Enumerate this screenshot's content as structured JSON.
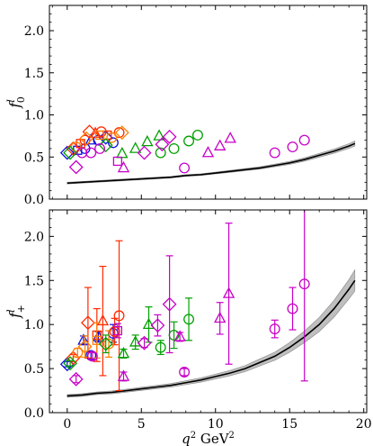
{
  "chart_data": [
    {
      "type": "scatter",
      "panel": "top",
      "ylabel": "f_0^l",
      "xlabel": "",
      "xlim": [
        -1.2,
        20.2
      ],
      "ylim": [
        0.0,
        2.3
      ],
      "x_ticks": [],
      "y_ticks": [
        0.0,
        0.5,
        1.0,
        1.5,
        2.0
      ],
      "y_tick_labels": [
        "0.0",
        "0.5",
        "1.0",
        "1.5",
        "2.0"
      ],
      "band": {
        "color": "#000000",
        "fill": "#aaaaaa",
        "x": [
          0,
          1,
          2,
          3,
          4,
          5,
          6,
          7,
          8,
          9,
          10,
          11,
          12,
          13,
          14,
          15,
          16,
          17,
          18,
          19,
          19.4
        ],
        "central": [
          0.19,
          0.2,
          0.21,
          0.22,
          0.23,
          0.24,
          0.25,
          0.26,
          0.28,
          0.29,
          0.31,
          0.33,
          0.35,
          0.37,
          0.4,
          0.43,
          0.47,
          0.52,
          0.57,
          0.63,
          0.66
        ],
        "half_width": [
          0.01,
          0.01,
          0.01,
          0.01,
          0.01,
          0.01,
          0.01,
          0.01,
          0.01,
          0.01,
          0.01,
          0.012,
          0.013,
          0.014,
          0.016,
          0.018,
          0.02,
          0.022,
          0.025,
          0.028,
          0.03
        ]
      },
      "series": [
        {
          "color": "#1010e0",
          "points": [
            {
              "x": 0.0,
              "y": 0.55,
              "marker": "diamond"
            },
            {
              "x": 0.7,
              "y": 0.58,
              "marker": "square"
            },
            {
              "x": 1.2,
              "y": 0.6,
              "marker": "circle"
            },
            {
              "x": 1.6,
              "y": 0.7,
              "marker": "triangle"
            },
            {
              "x": 2.1,
              "y": 0.7,
              "marker": "circle"
            },
            {
              "x": 2.6,
              "y": 0.73,
              "marker": "diamond"
            },
            {
              "x": 3.1,
              "y": 0.67,
              "marker": "circle"
            }
          ]
        },
        {
          "color": "#ff2a00",
          "points": [
            {
              "x": 0.4,
              "y": 0.6,
              "marker": "diamond"
            },
            {
              "x": 0.9,
              "y": 0.66,
              "marker": "square"
            },
            {
              "x": 1.2,
              "y": 0.7,
              "marker": "circle"
            },
            {
              "x": 1.5,
              "y": 0.8,
              "marker": "diamond"
            },
            {
              "x": 1.9,
              "y": 0.78,
              "marker": "triangle"
            },
            {
              "x": 2.3,
              "y": 0.8,
              "marker": "circle"
            },
            {
              "x": 2.7,
              "y": 0.76,
              "marker": "square"
            },
            {
              "x": 3.5,
              "y": 0.79,
              "marker": "circle"
            }
          ]
        },
        {
          "color": "#ff7f00",
          "points": [
            {
              "x": 0.6,
              "y": 0.62,
              "marker": "circle"
            },
            {
              "x": 1.3,
              "y": 0.72,
              "marker": "diamond"
            },
            {
              "x": 2.2,
              "y": 0.76,
              "marker": "square"
            },
            {
              "x": 3.0,
              "y": 0.73,
              "marker": "circle"
            },
            {
              "x": 3.7,
              "y": 0.79,
              "marker": "diamond"
            }
          ]
        },
        {
          "color": "#00a000",
          "points": [
            {
              "x": 0.2,
              "y": 0.55,
              "marker": "diamond"
            },
            {
              "x": 2.6,
              "y": 0.64,
              "marker": "diamond"
            },
            {
              "x": 3.7,
              "y": 0.54,
              "marker": "triangle"
            },
            {
              "x": 4.6,
              "y": 0.6,
              "marker": "triangle"
            },
            {
              "x": 5.4,
              "y": 0.68,
              "marker": "triangle"
            },
            {
              "x": 6.2,
              "y": 0.75,
              "marker": "triangle"
            },
            {
              "x": 6.3,
              "y": 0.55,
              "marker": "circle"
            },
            {
              "x": 7.2,
              "y": 0.6,
              "marker": "circle"
            },
            {
              "x": 8.2,
              "y": 0.69,
              "marker": "circle"
            },
            {
              "x": 8.8,
              "y": 0.76,
              "marker": "circle"
            }
          ]
        },
        {
          "color": "#c800c8",
          "points": [
            {
              "x": 0.6,
              "y": 0.38,
              "marker": "diamond"
            },
            {
              "x": 1.0,
              "y": 0.55,
              "marker": "circle"
            },
            {
              "x": 1.6,
              "y": 0.55,
              "marker": "circle"
            },
            {
              "x": 2.2,
              "y": 0.6,
              "marker": "circle"
            },
            {
              "x": 3.4,
              "y": 0.45,
              "marker": "square"
            },
            {
              "x": 3.8,
              "y": 0.37,
              "marker": "triangle"
            },
            {
              "x": 5.2,
              "y": 0.55,
              "marker": "diamond"
            },
            {
              "x": 6.4,
              "y": 0.65,
              "marker": "diamond"
            },
            {
              "x": 6.9,
              "y": 0.74,
              "marker": "diamond"
            },
            {
              "x": 7.9,
              "y": 0.37,
              "marker": "circle"
            },
            {
              "x": 9.5,
              "y": 0.55,
              "marker": "triangle"
            },
            {
              "x": 10.3,
              "y": 0.63,
              "marker": "triangle"
            },
            {
              "x": 11.0,
              "y": 0.72,
              "marker": "triangle"
            },
            {
              "x": 14.0,
              "y": 0.55,
              "marker": "circle"
            },
            {
              "x": 15.2,
              "y": 0.62,
              "marker": "circle"
            },
            {
              "x": 16.0,
              "y": 0.7,
              "marker": "circle"
            }
          ]
        }
      ]
    },
    {
      "type": "scatter",
      "panel": "bottom",
      "ylabel": "f_+^l",
      "xlabel": "q^2 GeV^2",
      "xlim": [
        -1.2,
        20.2
      ],
      "ylim": [
        0.0,
        2.3
      ],
      "x_ticks": [
        0,
        5,
        10,
        15,
        20
      ],
      "x_tick_labels": [
        "0",
        "5",
        "10",
        "15",
        "20"
      ],
      "y_ticks": [
        0.0,
        0.5,
        1.0,
        1.5,
        2.0
      ],
      "y_tick_labels": [
        "0.0",
        "0.5",
        "1.0",
        "1.5",
        "2.0"
      ],
      "band": {
        "color": "#000000",
        "fill": "#aaaaaa",
        "x": [
          0,
          1,
          2,
          3,
          4,
          5,
          6,
          7,
          8,
          9,
          10,
          11,
          12,
          13,
          14,
          15,
          16,
          17,
          18,
          19,
          19.4
        ],
        "central": [
          0.19,
          0.2,
          0.22,
          0.23,
          0.25,
          0.27,
          0.29,
          0.31,
          0.34,
          0.37,
          0.41,
          0.45,
          0.5,
          0.57,
          0.64,
          0.74,
          0.86,
          1.0,
          1.18,
          1.4,
          1.5
        ],
        "half_width": [
          0.015,
          0.015,
          0.015,
          0.016,
          0.017,
          0.018,
          0.019,
          0.02,
          0.022,
          0.024,
          0.027,
          0.03,
          0.034,
          0.04,
          0.046,
          0.055,
          0.065,
          0.08,
          0.095,
          0.11,
          0.12
        ]
      },
      "series": [
        {
          "color": "#1010e0",
          "points": [
            {
              "x": 0.0,
              "y": 0.55,
              "err": 0.03,
              "marker": "diamond"
            },
            {
              "x": 1.1,
              "y": 0.82,
              "err": 0.05,
              "marker": "triangle"
            },
            {
              "x": 1.6,
              "y": 0.65,
              "err": 0.04,
              "marker": "circle"
            },
            {
              "x": 2.1,
              "y": 0.86,
              "err": 0.06,
              "marker": "triangle"
            },
            {
              "x": 3.1,
              "y": 0.9,
              "err": 0.1,
              "marker": "circle"
            }
          ]
        },
        {
          "color": "#ff2a00",
          "points": [
            {
              "x": 0.4,
              "y": 0.62,
              "err": 0.04,
              "marker": "diamond"
            },
            {
              "x": 1.4,
              "y": 1.02,
              "err": 0.4,
              "marker": "diamond"
            },
            {
              "x": 2.0,
              "y": 0.88,
              "err": 0.3,
              "marker": "square"
            },
            {
              "x": 2.4,
              "y": 1.04,
              "err": 0.62,
              "marker": "triangle"
            },
            {
              "x": 3.2,
              "y": 0.92,
              "err": 0.15,
              "marker": "circle"
            },
            {
              "x": 3.5,
              "y": 1.1,
              "err": 0.85,
              "marker": "circle"
            }
          ]
        },
        {
          "color": "#ff7f00",
          "points": [
            {
              "x": 0.7,
              "y": 0.68,
              "err": 0.05,
              "marker": "circle"
            },
            {
              "x": 1.2,
              "y": 0.75,
              "err": 0.12,
              "marker": "diamond"
            },
            {
              "x": 2.0,
              "y": 0.82,
              "err": 0.2,
              "marker": "square"
            },
            {
              "x": 2.8,
              "y": 0.78,
              "err": 0.15,
              "marker": "circle"
            }
          ]
        },
        {
          "color": "#00a000",
          "points": [
            {
              "x": 0.2,
              "y": 0.56,
              "err": 0.03,
              "marker": "diamond"
            },
            {
              "x": 2.6,
              "y": 0.78,
              "err": 0.1,
              "marker": "diamond"
            },
            {
              "x": 3.8,
              "y": 0.67,
              "err": 0.05,
              "marker": "triangle"
            },
            {
              "x": 4.6,
              "y": 0.8,
              "err": 0.08,
              "marker": "triangle"
            },
            {
              "x": 5.5,
              "y": 1.0,
              "err": 0.2,
              "marker": "triangle"
            },
            {
              "x": 6.3,
              "y": 0.74,
              "err": 0.08,
              "marker": "circle"
            },
            {
              "x": 7.2,
              "y": 0.88,
              "err": 0.15,
              "marker": "circle"
            },
            {
              "x": 8.2,
              "y": 1.06,
              "err": 0.24,
              "marker": "circle"
            }
          ]
        },
        {
          "color": "#c800c8",
          "points": [
            {
              "x": 0.6,
              "y": 0.38,
              "err": 0.04,
              "marker": "diamond"
            },
            {
              "x": 1.7,
              "y": 0.64,
              "err": 0.04,
              "marker": "circle"
            },
            {
              "x": 3.4,
              "y": 0.93,
              "err": 0.08,
              "marker": "square"
            },
            {
              "x": 3.8,
              "y": 0.41,
              "err": 0.05,
              "marker": "triangle"
            },
            {
              "x": 5.2,
              "y": 0.79,
              "err": 0.05,
              "marker": "diamond"
            },
            {
              "x": 6.1,
              "y": 0.99,
              "err": 0.12,
              "marker": "diamond"
            },
            {
              "x": 6.9,
              "y": 1.23,
              "err": 0.55,
              "marker": "diamond"
            },
            {
              "x": 7.6,
              "y": 0.86,
              "err": 0.05,
              "marker": "triangle"
            },
            {
              "x": 7.9,
              "y": 0.46,
              "err": 0.04,
              "marker": "circle"
            },
            {
              "x": 10.3,
              "y": 1.07,
              "err": 0.18,
              "marker": "triangle"
            },
            {
              "x": 10.9,
              "y": 1.35,
              "err": 0.8,
              "marker": "triangle"
            },
            {
              "x": 14.0,
              "y": 0.95,
              "err": 0.1,
              "marker": "circle"
            },
            {
              "x": 15.2,
              "y": 1.18,
              "err": 0.24,
              "marker": "circle"
            },
            {
              "x": 16.0,
              "y": 1.46,
              "err": 1.1,
              "marker": "circle"
            }
          ]
        }
      ]
    }
  ]
}
